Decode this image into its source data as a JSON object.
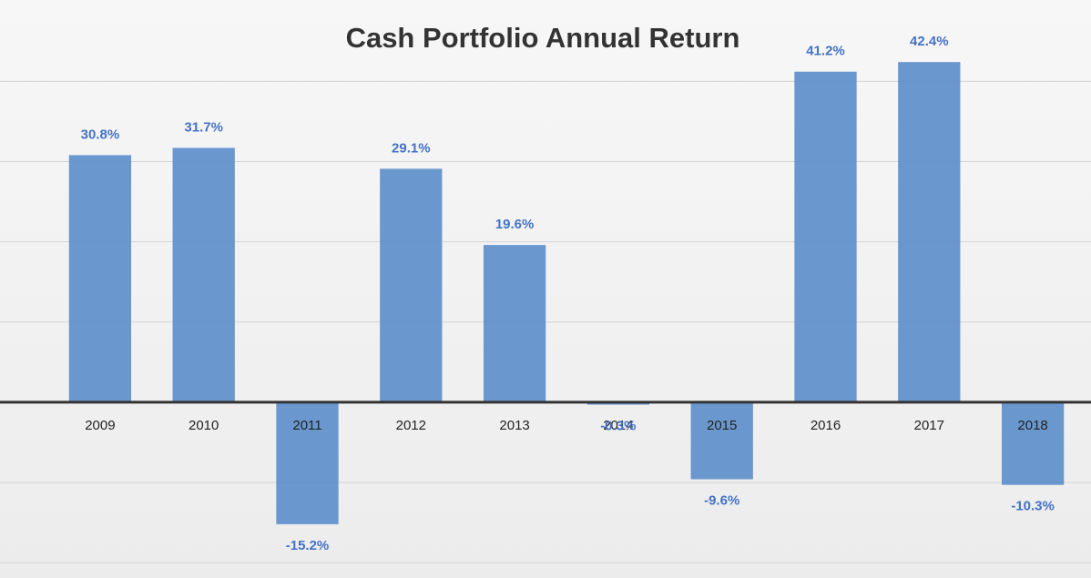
{
  "chart_data": {
    "type": "bar",
    "title": "Cash Portfolio Annual Return",
    "categories": [
      "2009",
      "2010",
      "2011",
      "2012",
      "2013",
      "2014",
      "2015",
      "2016",
      "2017",
      "2018"
    ],
    "values": [
      30.8,
      31.7,
      -15.2,
      29.1,
      19.6,
      -0.3,
      -9.6,
      41.2,
      42.4,
      -10.3
    ],
    "value_labels": [
      "30.8%",
      "31.7%",
      "-15.2%",
      "29.1%",
      "19.6%",
      "-0.3%",
      "-9.6%",
      "41.2%",
      "42.4%",
      "-10.3%"
    ],
    "color": "#5b8dc9",
    "ylim": [
      -21,
      49
    ],
    "yticks": [
      -20,
      -10,
      0,
      10,
      20,
      30,
      40
    ],
    "grid": true
  }
}
